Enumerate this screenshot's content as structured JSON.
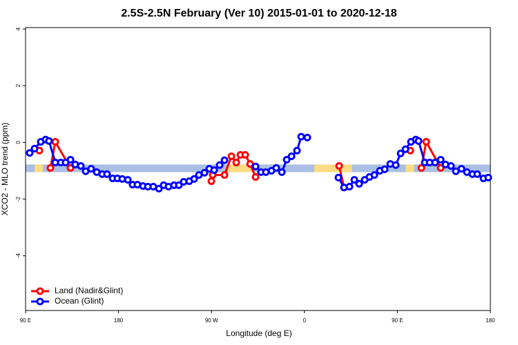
{
  "chart_data": {
    "type": "line",
    "title": "2.5S-2.5N February (Ver 10)   2015-01-01 to 2020-12-18",
    "x_label": "Longitude (deg E)",
    "y_label": "XCO2 - MLO trend (ppm)",
    "xlim": [
      90,
      540
    ],
    "ylim": [
      -5.93,
      4.05
    ],
    "xticks": [
      {
        "value": 90,
        "label": "90 E"
      },
      180,
      {
        "value": 270,
        "label": "90 W"
      },
      {
        "value": 360,
        "label": "0"
      },
      {
        "value": 450,
        "label": "90 E"
      },
      {
        "value": 540,
        "label": "180"
      }
    ],
    "yticks": [
      4,
      2,
      0,
      -2,
      -4
    ],
    "legend": "bottom-left",
    "band": {
      "range": [
        -1.05,
        -0.78
      ],
      "color": "#a9bfe3",
      "highlight_color": "#fddc83",
      "highlights": [
        [
          98.7,
          106.7
        ],
        [
          286,
          309
        ],
        [
          369.5,
          406
        ],
        [
          458,
          466
        ]
      ]
    },
    "series": [
      {
        "name": "Land (Nadir&Glint)",
        "color": "#ff0000",
        "x": [
          103.4,
          108,
          114.1,
          118.8,
          133.5,
          200,
          269.9,
          271.2,
          282.6,
          289.3,
          294.0,
          298.0,
          302.7,
          307.4,
          312.7,
          350,
          393.6,
          398.3,
          430,
          462.5,
          467,
          473.2,
          477.9,
          491.9
        ],
        "values": [
          -0.29,
          null,
          -0.9,
          0.02,
          -0.9,
          null,
          -1.37,
          -1.15,
          -1.15,
          -0.49,
          -0.71,
          -0.44,
          -0.44,
          -0.76,
          -1.22,
          null,
          -0.83,
          -1.59,
          null,
          -0.29,
          null,
          -0.9,
          0.02,
          -0.9
        ]
      },
      {
        "name": "Ocean (Glint)",
        "color": "#0000ff",
        "x": [
          94.0,
          98.7,
          104.7,
          109.4,
          112.7,
          118.8,
          124.1,
          128.8,
          133.5,
          138.1,
          143.5,
          148.2,
          153.5,
          158.9,
          164.2,
          168.9,
          174.3,
          178.9,
          183.6,
          189.0,
          193.6,
          198.3,
          203.7,
          208.4,
          213.7,
          219.1,
          223.7,
          228.4,
          233.8,
          238.4,
          243.1,
          248.5,
          253.2,
          257.8,
          263.2,
          267.9,
          272.6,
          277.9,
          282.6,
          297,
          312.7,
          318.0,
          322.7,
          328.1,
          332.7,
          338.1,
          342.8,
          347.5,
          352.8,
          356.8,
          362.8,
          375,
          392.9,
          398.3,
          403.6,
          408.3,
          413.0,
          418.3,
          423.0,
          427.7,
          433.0,
          437.7,
          443.1,
          448.4,
          453.1,
          457.8,
          463.1,
          467.8,
          470.5,
          476.5,
          481.2,
          486.5,
          491.9,
          496.6,
          501.9,
          506.6,
          512.0,
          517.3,
          522.6,
          527.3,
          533.3,
          538.0
        ],
        "values": [
          -0.37,
          -0.22,
          0.02,
          0.1,
          0.05,
          -0.71,
          -0.71,
          -0.71,
          -0.61,
          -0.78,
          -0.83,
          -1.02,
          -0.93,
          -1.05,
          -1.12,
          -1.12,
          -1.27,
          -1.27,
          -1.29,
          -1.32,
          -1.49,
          -1.49,
          -1.54,
          -1.56,
          -1.56,
          -1.63,
          -1.51,
          -1.56,
          -1.51,
          -1.51,
          -1.39,
          -1.37,
          -1.29,
          -1.15,
          -1.07,
          -0.93,
          -0.98,
          -0.8,
          -0.63,
          null,
          -0.85,
          -1.05,
          -1.05,
          -1.0,
          -0.9,
          -1.05,
          -0.61,
          -0.49,
          -0.29,
          0.2,
          0.17,
          null,
          -1.24,
          -1.59,
          -1.56,
          -1.32,
          -1.46,
          -1.32,
          -1.22,
          -1.15,
          -1.0,
          -0.95,
          -0.76,
          -0.8,
          -0.39,
          -0.24,
          0.02,
          0.1,
          0.05,
          -0.71,
          -0.71,
          -0.71,
          -0.61,
          -0.78,
          -0.83,
          -1.02,
          -0.93,
          -1.05,
          -1.12,
          -1.12,
          -1.27,
          -1.24
        ]
      }
    ]
  }
}
